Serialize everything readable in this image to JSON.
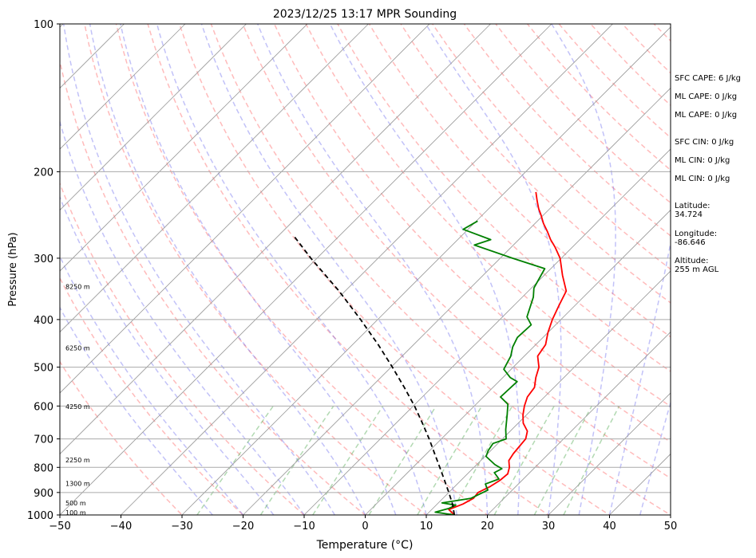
{
  "chart_data": {
    "type": "line",
    "title": "2023/12/25 13:17 MPR Sounding",
    "xlabel": "Temperature (°C)",
    "ylabel": "Pressure (hPa)",
    "xlim": [
      -50,
      50
    ],
    "ylim": [
      1000,
      100
    ],
    "y_scale": "log",
    "x_ticks": [
      -50,
      -40,
      -30,
      -20,
      -10,
      0,
      10,
      20,
      30,
      40,
      50
    ],
    "y_ticks": [
      1000,
      900,
      800,
      700,
      600,
      500,
      400,
      300,
      200,
      100
    ],
    "x_tick_labels": [
      "−50",
      "−40",
      "−30",
      "−20",
      "−10",
      "0",
      "10",
      "20",
      "30",
      "40",
      "50"
    ],
    "y_tick_labels": [
      "1000",
      "900",
      "800",
      "700",
      "600",
      "500",
      "400",
      "300",
      "200",
      "100"
    ],
    "height_labels": [
      {
        "text": "100 m",
        "p": 989
      },
      {
        "text": "500 m",
        "p": 945
      },
      {
        "text": "1300 m",
        "p": 862
      },
      {
        "text": "2250 m",
        "p": 773
      },
      {
        "text": "4250 m",
        "p": 601
      },
      {
        "text": "6250 m",
        "p": 457
      },
      {
        "text": "8250 m",
        "p": 343
      }
    ],
    "series": [
      {
        "role": "temperature",
        "color": "#ff0000",
        "points": [
          [
            14.6,
            1000
          ],
          [
            12.8,
            975
          ],
          [
            14.2,
            950
          ],
          [
            15.0,
            925
          ],
          [
            14.8,
            900
          ],
          [
            15.8,
            875
          ],
          [
            16.4,
            850
          ],
          [
            16.6,
            825
          ],
          [
            15.8,
            800
          ],
          [
            14.6,
            775
          ],
          [
            14.2,
            750
          ],
          [
            14.0,
            725
          ],
          [
            13.8,
            700
          ],
          [
            12.8,
            675
          ],
          [
            10.8,
            650
          ],
          [
            9.4,
            625
          ],
          [
            8.2,
            600
          ],
          [
            7.2,
            575
          ],
          [
            6.8,
            550
          ],
          [
            5.4,
            525
          ],
          [
            4.2,
            500
          ],
          [
            2.2,
            475
          ],
          [
            1.6,
            450
          ],
          [
            0.0,
            425
          ],
          [
            -1.4,
            400
          ],
          [
            -2.6,
            375
          ],
          [
            -3.8,
            350
          ],
          [
            -7.0,
            325
          ],
          [
            -10.2,
            300
          ],
          [
            -12.8,
            285
          ],
          [
            -14.8,
            275
          ],
          [
            -16.6,
            265
          ],
          [
            -18.6,
            255
          ],
          [
            -20.4,
            245
          ],
          [
            -21.8,
            238
          ],
          [
            -23.4,
            229
          ],
          [
            -25.0,
            220
          ]
        ]
      },
      {
        "role": "dewpoint",
        "color": "#008000",
        "points": [
          [
            14.6,
            1000
          ],
          [
            11.0,
            987
          ],
          [
            12.6,
            970
          ],
          [
            13.2,
            955
          ],
          [
            10.6,
            945
          ],
          [
            14.6,
            925
          ],
          [
            16.0,
            890
          ],
          [
            14.6,
            865
          ],
          [
            16.0,
            845
          ],
          [
            14.2,
            820
          ],
          [
            14.8,
            805
          ],
          [
            13.0,
            790
          ],
          [
            10.2,
            760
          ],
          [
            9.6,
            740
          ],
          [
            9.2,
            715
          ],
          [
            10.6,
            700
          ],
          [
            9.0,
            670
          ],
          [
            6.8,
            625
          ],
          [
            5.2,
            595
          ],
          [
            2.8,
            575
          ],
          [
            3.0,
            535
          ],
          [
            1.2,
            525
          ],
          [
            -1.2,
            505
          ],
          [
            -2.2,
            475
          ],
          [
            -3.4,
            455
          ],
          [
            -4.2,
            435
          ],
          [
            -4.0,
            410
          ],
          [
            -6.0,
            395
          ],
          [
            -8.2,
            360
          ],
          [
            -9.6,
            345
          ],
          [
            -11.0,
            315
          ],
          [
            -18.0,
            300
          ],
          [
            -26.4,
            282
          ],
          [
            -24.6,
            275
          ],
          [
            -30.8,
            262
          ],
          [
            -29.8,
            252
          ]
        ]
      },
      {
        "role": "parcel",
        "color": "#000000",
        "points": [
          [
            14.6,
            1000
          ],
          [
            12.5,
            950
          ],
          [
            10.0,
            900
          ],
          [
            7.3,
            850
          ],
          [
            4.4,
            800
          ],
          [
            1.3,
            750
          ],
          [
            -2.0,
            700
          ],
          [
            -5.7,
            650
          ],
          [
            -9.8,
            600
          ],
          [
            -14.5,
            550
          ],
          [
            -19.8,
            500
          ],
          [
            -25.8,
            450
          ],
          [
            -32.8,
            400
          ],
          [
            -41.0,
            350
          ],
          [
            -51.0,
            300
          ],
          [
            -57.5,
            270
          ]
        ]
      }
    ]
  },
  "indices": {
    "sfc_cape": "SFC CAPE: 6 J/kg",
    "ml_cape_1": "ML CAPE: 0 J/kg",
    "ml_cape_2": "ML CAPE: 0 J/kg",
    "sfc_cin": "SFC CIN: 0 J/kg",
    "ml_cin_1": "ML CIN: 0 J/kg",
    "ml_cin_2": "ML CIN: 0 J/kg"
  },
  "station": {
    "latitude_label": "Latitude:",
    "latitude_value": "34.724",
    "longitude_label": "Longitude:",
    "longitude_value": "-86.646",
    "altitude_label": "Altitude:",
    "altitude_value": "255 m AGL"
  },
  "colors": {
    "dry_adiabat": "#ff7777",
    "moist_adiabat": "#6666ee",
    "mixing_ratio": "#55aa55",
    "isotherm": "#999999"
  }
}
